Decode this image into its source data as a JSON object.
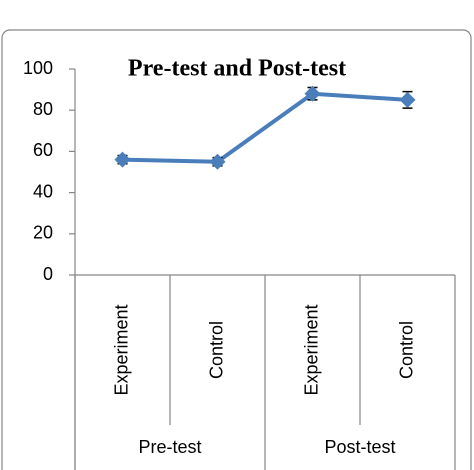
{
  "chart_data": {
    "type": "line",
    "title": "Pre-test and Post-test",
    "categories": [
      "Experiment",
      "Control",
      "Experiment",
      "Control"
    ],
    "groups": [
      "Pre-test",
      "Post-test"
    ],
    "values": [
      56,
      55,
      88,
      85
    ],
    "errors": [
      2,
      2,
      3,
      4
    ],
    "color": "#4a7ebb",
    "ylim": [
      0,
      100
    ],
    "yticks": [
      0,
      20,
      40,
      60,
      80,
      100
    ],
    "grid": false
  }
}
